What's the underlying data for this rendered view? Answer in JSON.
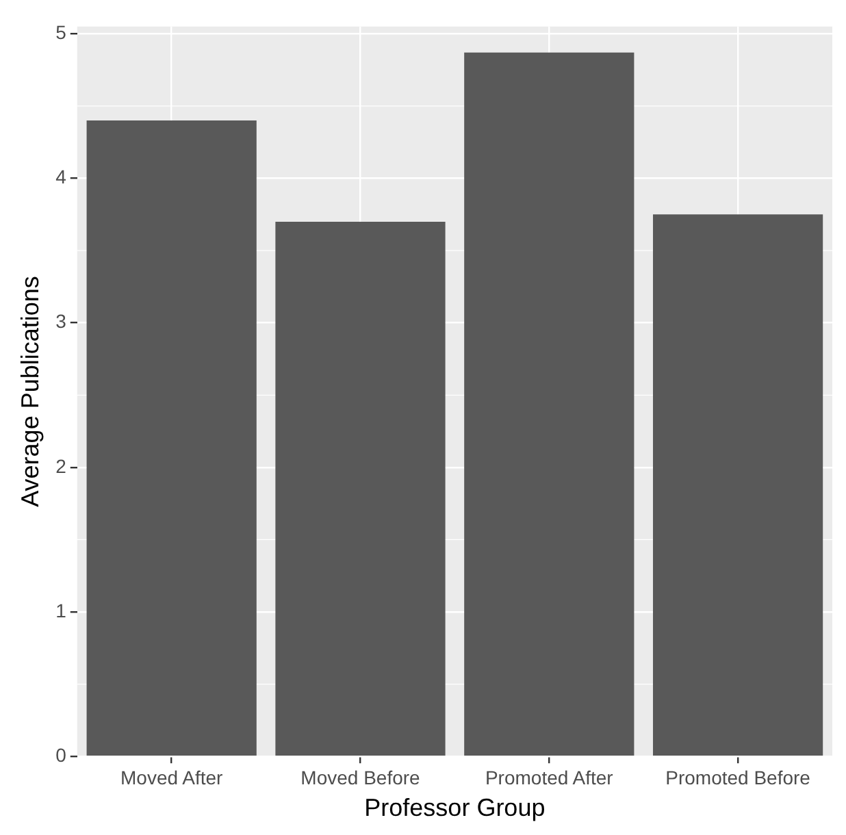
{
  "chart_data": {
    "type": "bar",
    "xlabel": "Professor Group",
    "ylabel": "Average Publications",
    "categories": [
      "Moved After",
      "Moved Before",
      "Promoted After",
      "Promoted Before"
    ],
    "values": [
      4.4,
      3.7,
      4.87,
      3.75
    ],
    "color": "#595959",
    "ylim": [
      0,
      5.05
    ],
    "yticks": [
      0,
      1,
      2,
      3,
      4,
      5
    ],
    "grid": true,
    "legend": false
  }
}
